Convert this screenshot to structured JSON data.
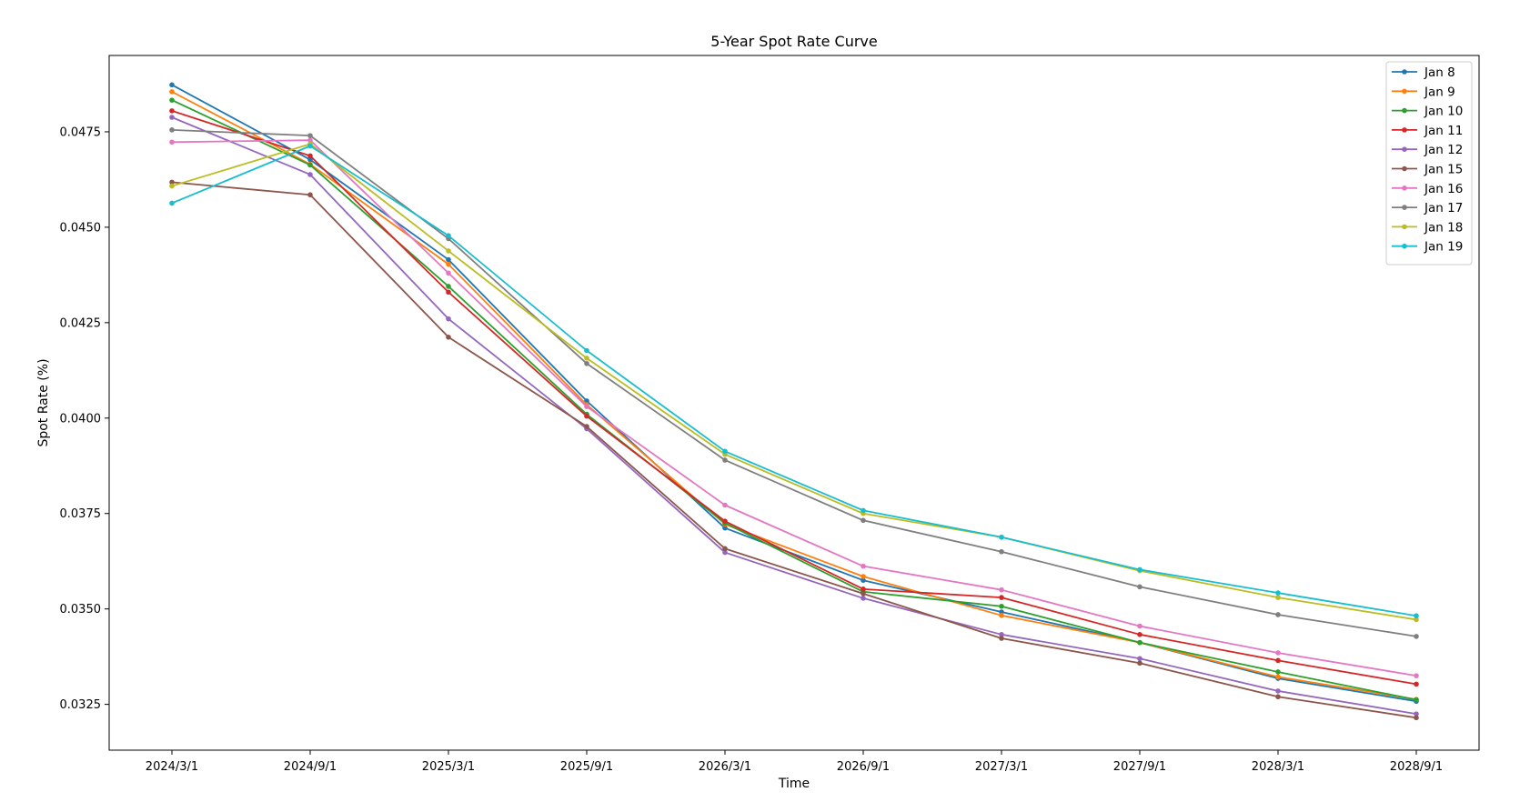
{
  "chart_data": {
    "type": "line",
    "title": "5-Year Spot Rate Curve",
    "xlabel": "Time",
    "ylabel": "Spot Rate (%)",
    "categories": [
      "2024/3/1",
      "2024/9/1",
      "2025/3/1",
      "2025/9/1",
      "2026/3/1",
      "2026/9/1",
      "2027/3/1",
      "2027/9/1",
      "2028/3/1",
      "2028/9/1"
    ],
    "ylim": [
      0.0313,
      0.0495
    ],
    "yticks": [
      "0.0325",
      "0.0350",
      "0.0375",
      "0.0400",
      "0.0425",
      "0.0450",
      "0.0475"
    ],
    "grid": false,
    "legend_position": "top-right",
    "series": [
      {
        "name": "Jan 8",
        "color": "#1f77b4",
        "values": [
          0.04873,
          0.04677,
          0.04415,
          0.04045,
          0.03712,
          0.03575,
          0.03492,
          0.03412,
          0.03318,
          0.03258
        ]
      },
      {
        "name": "Jan 9",
        "color": "#ff7f0e",
        "values": [
          0.04855,
          0.04665,
          0.04403,
          0.04035,
          0.03722,
          0.03585,
          0.03483,
          0.03412,
          0.03322,
          0.03263
        ]
      },
      {
        "name": "Jan 10",
        "color": "#2ca02c",
        "values": [
          0.04833,
          0.04663,
          0.04345,
          0.0401,
          0.03725,
          0.03545,
          0.03507,
          0.03412,
          0.03335,
          0.03262
        ]
      },
      {
        "name": "Jan 11",
        "color": "#d62728",
        "values": [
          0.04805,
          0.04687,
          0.0433,
          0.04005,
          0.0373,
          0.03552,
          0.0353,
          0.03433,
          0.03365,
          0.03303
        ]
      },
      {
        "name": "Jan 12",
        "color": "#9467bd",
        "values": [
          0.04788,
          0.04638,
          0.0426,
          0.03972,
          0.03648,
          0.03528,
          0.03433,
          0.0337,
          0.03285,
          0.03225
        ]
      },
      {
        "name": "Jan 15",
        "color": "#8c564b",
        "values": [
          0.04618,
          0.04585,
          0.04212,
          0.03978,
          0.03658,
          0.0354,
          0.03423,
          0.03358,
          0.0327,
          0.03215
        ]
      },
      {
        "name": "Jan 16",
        "color": "#e377c2",
        "values": [
          0.04723,
          0.04728,
          0.0438,
          0.0403,
          0.03772,
          0.03612,
          0.0355,
          0.03455,
          0.03385,
          0.03325
        ]
      },
      {
        "name": "Jan 17",
        "color": "#7f7f7f",
        "values": [
          0.04755,
          0.0474,
          0.0447,
          0.04143,
          0.0389,
          0.03732,
          0.0365,
          0.03558,
          0.03485,
          0.03428
        ]
      },
      {
        "name": "Jan 18",
        "color": "#bcbd22",
        "values": [
          0.04608,
          0.04718,
          0.04438,
          0.04157,
          0.03905,
          0.0375,
          0.03688,
          0.036,
          0.0353,
          0.03472
        ]
      },
      {
        "name": "Jan 19",
        "color": "#17becf",
        "values": [
          0.04563,
          0.04713,
          0.04478,
          0.04177,
          0.03913,
          0.03758,
          0.03688,
          0.03603,
          0.03542,
          0.03482
        ]
      }
    ]
  }
}
